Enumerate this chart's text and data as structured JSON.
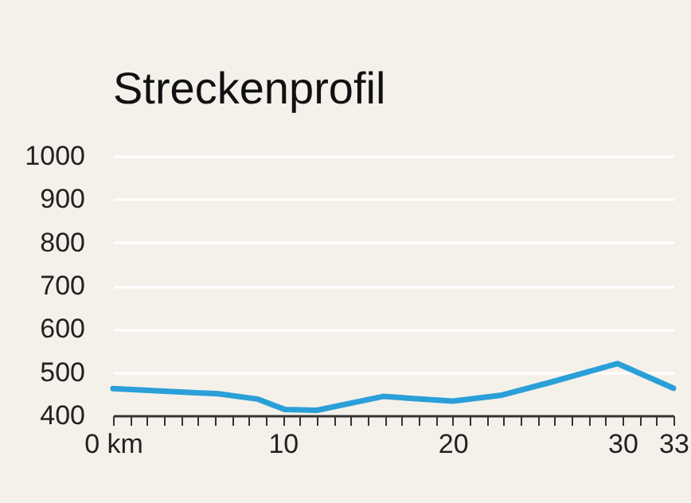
{
  "chart_data": {
    "type": "line",
    "title": "Streckenprofil",
    "x": [
      0,
      6.2,
      8.5,
      10.1,
      12,
      15.9,
      20,
      22.9,
      25.6,
      29.7,
      33
    ],
    "series": [
      {
        "color": "#2a9fd8",
        "values": [
          462,
          450,
          438,
          414,
          412,
          444,
          433,
          447,
          475,
          520,
          463
        ]
      }
    ],
    "xlim": [
      0,
      33
    ],
    "xticks": [
      {
        "value": 0,
        "label": "0 km"
      },
      {
        "value": 1,
        "label": null
      },
      {
        "value": 2,
        "label": null
      },
      {
        "value": 3,
        "label": null
      },
      {
        "value": 4,
        "label": null
      },
      {
        "value": 5,
        "label": null
      },
      {
        "value": 6,
        "label": null
      },
      {
        "value": 7,
        "label": null
      },
      {
        "value": 8,
        "label": null
      },
      {
        "value": 9,
        "label": null
      },
      10,
      {
        "value": 11,
        "label": null
      },
      {
        "value": 12,
        "label": null
      },
      {
        "value": 13,
        "label": null
      },
      {
        "value": 14,
        "label": null
      },
      {
        "value": 15,
        "label": null
      },
      {
        "value": 16,
        "label": null
      },
      {
        "value": 17,
        "label": null
      },
      {
        "value": 18,
        "label": null
      },
      {
        "value": 19,
        "label": null
      },
      20,
      {
        "value": 21,
        "label": null
      },
      {
        "value": 22,
        "label": null
      },
      {
        "value": 23,
        "label": null
      },
      {
        "value": 24,
        "label": null
      },
      {
        "value": 25,
        "label": null
      },
      {
        "value": 26,
        "label": null
      },
      {
        "value": 27,
        "label": null
      },
      {
        "value": 28,
        "label": null
      },
      {
        "value": 29,
        "label": null
      },
      30,
      {
        "value": 31,
        "label": null
      },
      {
        "value": 32,
        "label": null
      },
      33
    ],
    "ylim": [
      400,
      1000
    ],
    "yticks": [
      400,
      500,
      600,
      700,
      800,
      900,
      1000
    ],
    "grid": "y",
    "marker": "none",
    "line_style": "solid"
  }
}
